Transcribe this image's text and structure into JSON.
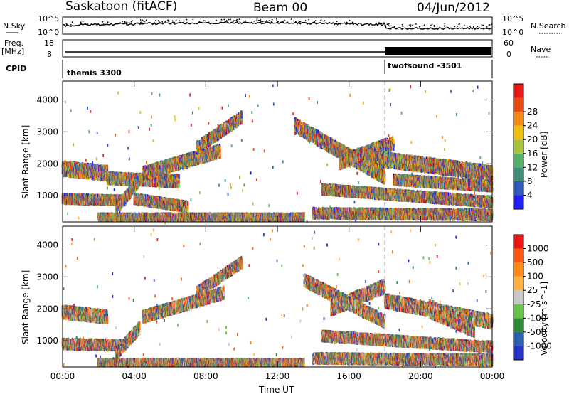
{
  "header": {
    "station": "Saskatoon (fitACF)",
    "beam": "Beam 00",
    "date": "04/Jun/2012"
  },
  "strip": {
    "nsky_label": "N.Sky",
    "nsearch_label": "N.Search",
    "freq_label": "Freq.",
    "freq_unit": "[MHz]",
    "nave_label": "Nave",
    "cpid_label": "CPID",
    "nsky_ticks": [
      "10^5",
      "10^0"
    ],
    "nsearch_ticks": [
      "10^5",
      "10^0"
    ],
    "freq_ticks": [
      "18",
      "8"
    ],
    "nave_ticks": [
      "60",
      "0"
    ],
    "cpid_segments": [
      {
        "name": "themis 3300",
        "start_hour": 0,
        "end_hour": 18
      },
      {
        "name": "twofsound -3501",
        "start_hour": 18,
        "end_hour": 24
      }
    ]
  },
  "axes": {
    "ylabel": "Slant Range [km]",
    "xlabel": "Time UT",
    "x_ticks": [
      "00:00",
      "04:00",
      "08:00",
      "12:00",
      "16:00",
      "20:00",
      "00:00"
    ],
    "y_ticks": [
      "1000",
      "2000",
      "3000",
      "4000"
    ]
  },
  "chart_data": [
    {
      "type": "heatmap",
      "panel": "power",
      "ylabel": "Slant Range [km]",
      "xlim_hours": [
        0,
        24
      ],
      "ylim_km": [
        180,
        4590
      ],
      "colorbar": {
        "label": "Power [dB]",
        "ticks": [
          "4",
          "8",
          "12",
          "16",
          "20",
          "24",
          "28"
        ],
        "colors": [
          "#1f1ff5",
          "#2d59b8",
          "#3f8f7a",
          "#56b26a",
          "#a8c23a",
          "#f0c010",
          "#f28a14",
          "#ec4a14",
          "#e81818"
        ]
      },
      "echo_regions": [
        {
          "start_h": 0.0,
          "end_h": 2.5,
          "center_km_start": 1850,
          "center_km_end": 1700,
          "width_km": 320
        },
        {
          "start_h": 0.0,
          "end_h": 3.5,
          "center_km_start": 900,
          "center_km_end": 850,
          "width_km": 200
        },
        {
          "start_h": 2.5,
          "end_h": 6.5,
          "center_km_start": 1550,
          "center_km_end": 1450,
          "width_km": 250
        },
        {
          "start_h": 3.0,
          "end_h": 4.2,
          "center_km_start": 600,
          "center_km_end": 1400,
          "width_km": 250
        },
        {
          "start_h": 4.5,
          "end_h": 8.8,
          "center_km_start": 1700,
          "center_km_end": 2400,
          "width_km": 280
        },
        {
          "start_h": 7.5,
          "end_h": 10.0,
          "center_km_start": 2500,
          "center_km_end": 3450,
          "width_km": 260
        },
        {
          "start_h": 4.0,
          "end_h": 7.0,
          "center_km_start": 900,
          "center_km_end": 650,
          "width_km": 220
        },
        {
          "start_h": 2.0,
          "end_h": 13.5,
          "center_km_start": 330,
          "center_km_end": 330,
          "width_km": 140
        },
        {
          "start_h": 13.0,
          "end_h": 18.0,
          "center_km_start": 3200,
          "center_km_end": 1600,
          "width_km": 320
        },
        {
          "start_h": 15.5,
          "end_h": 18.5,
          "center_km_start": 2050,
          "center_km_end": 2650,
          "width_km": 300
        },
        {
          "start_h": 14.5,
          "end_h": 24.0,
          "center_km_start": 1200,
          "center_km_end": 800,
          "width_km": 220
        },
        {
          "start_h": 17.0,
          "end_h": 24.0,
          "center_km_start": 2200,
          "center_km_end": 1700,
          "width_km": 320
        },
        {
          "start_h": 18.5,
          "end_h": 24.0,
          "center_km_start": 1500,
          "center_km_end": 1300,
          "width_km": 220
        },
        {
          "start_h": 14.0,
          "end_h": 24.0,
          "center_km_start": 450,
          "center_km_end": 400,
          "width_km": 220
        }
      ]
    },
    {
      "type": "heatmap",
      "panel": "velocity",
      "ylabel": "Slant Range [km]",
      "xlim_hours": [
        0,
        24
      ],
      "ylim_km": [
        180,
        4590
      ],
      "colorbar": {
        "label": "Velocity [m s^-1]",
        "ticks": [
          "1000",
          "500",
          "100",
          "25",
          "-25",
          "-100",
          "-500",
          "-1000"
        ],
        "colors": [
          "#2632c8",
          "#2b61b0",
          "#2f8a3a",
          "#66c24a",
          "#c8c8c8",
          "#ffb240",
          "#ff8a18",
          "#ff5a14",
          "#ea1616"
        ]
      },
      "echo_regions": [
        {
          "start_h": 0.0,
          "end_h": 2.5,
          "center_km_start": 1900,
          "center_km_end": 1750,
          "width_km": 280
        },
        {
          "start_h": 0.0,
          "end_h": 3.5,
          "center_km_start": 900,
          "center_km_end": 850,
          "width_km": 220
        },
        {
          "start_h": 3.0,
          "end_h": 4.3,
          "center_km_start": 600,
          "center_km_end": 1400,
          "width_km": 260
        },
        {
          "start_h": 4.5,
          "end_h": 9.0,
          "center_km_start": 1750,
          "center_km_end": 2500,
          "width_km": 260
        },
        {
          "start_h": 7.5,
          "end_h": 10.0,
          "center_km_start": 2500,
          "center_km_end": 3450,
          "width_km": 240
        },
        {
          "start_h": 2.0,
          "end_h": 13.5,
          "center_km_start": 320,
          "center_km_end": 320,
          "width_km": 130
        },
        {
          "start_h": 15.0,
          "end_h": 18.0,
          "center_km_start": 2000,
          "center_km_end": 2700,
          "width_km": 300
        },
        {
          "start_h": 13.5,
          "end_h": 18.0,
          "center_km_start": 2900,
          "center_km_end": 1600,
          "width_km": 280
        },
        {
          "start_h": 18.0,
          "end_h": 24.0,
          "center_km_start": 2250,
          "center_km_end": 1600,
          "width_km": 300
        },
        {
          "start_h": 20.5,
          "end_h": 23.0,
          "center_km_start": 2000,
          "center_km_end": 1400,
          "width_km": 400
        },
        {
          "start_h": 14.5,
          "end_h": 24.0,
          "center_km_start": 1150,
          "center_km_end": 800,
          "width_km": 220
        },
        {
          "start_h": 14.0,
          "end_h": 24.0,
          "center_km_start": 450,
          "center_km_end": 400,
          "width_km": 220
        }
      ]
    }
  ]
}
